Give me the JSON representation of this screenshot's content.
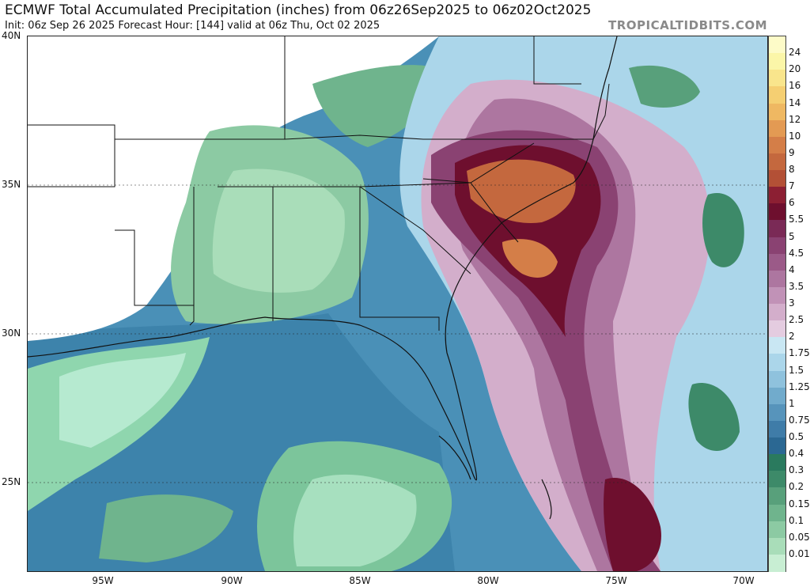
{
  "header": {
    "title": "ECMWF Total Accumulated Precipitation (inches) from 06z26Sep2025 to 06z02Oct2025",
    "subtitle": "Init: 06z Sep 26 2025   Forecast Hour: [144]   valid at 06z Thu, Oct 02 2025",
    "brand": "TROPICALTIDBITS.COM"
  },
  "axes": {
    "lat_labels": [
      "40N",
      "35N",
      "30N",
      "25N"
    ],
    "lon_labels": [
      "95W",
      "90W",
      "85W",
      "80W",
      "75W",
      "70W"
    ]
  },
  "colorbar": {
    "labels": [
      "24",
      "20",
      "16",
      "14",
      "12",
      "10",
      "9",
      "8",
      "7",
      "6",
      "5.5",
      "5",
      "4.5",
      "4",
      "3.5",
      "3",
      "2.5",
      "2",
      "1.75",
      "1.5",
      "1.25",
      "1",
      "0.75",
      "0.5",
      "0.4",
      "0.3",
      "0.2",
      "0.15",
      "0.1",
      "0.05",
      "0.01"
    ],
    "colors": [
      "#fbf6a8",
      "#f9e58c",
      "#f5cf72",
      "#efb862",
      "#e39a53",
      "#d47e48",
      "#c4683e",
      "#b35036",
      "#8c1f33",
      "#6e0f2e",
      "#7a2a56",
      "#8a4272",
      "#9b5a88",
      "#ad76a0",
      "#c192b7",
      "#d3aecb",
      "#e4cce0",
      "#c9e7f3",
      "#abd6ea",
      "#8fc2dd",
      "#71abcc",
      "#5794bb",
      "#3f7ca8",
      "#2b6893",
      "#2a7a5e",
      "#3d8a69",
      "#58a07b",
      "#6fb48d",
      "#8ccaa3",
      "#a9ddb9",
      "#c8eed3"
    ]
  },
  "map": {
    "region": "Southeast United States and western Atlantic",
    "features": [
      "state-borders",
      "county-borders",
      "coastline",
      "precipitation-contours"
    ]
  }
}
